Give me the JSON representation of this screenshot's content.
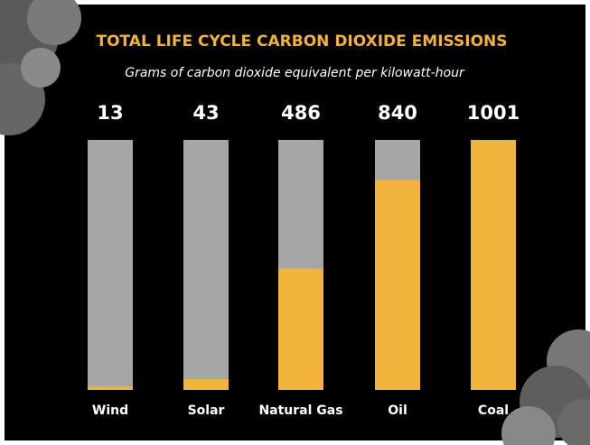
{
  "chart_data": {
    "type": "bar",
    "title": "TOTAL LIFE CYCLE CARBON DIOXIDE EMISSIONS",
    "subtitle": "Grams of carbon dioxide equivalent per kilowatt-hour",
    "categories": [
      "Wind",
      "Solar",
      "Natural Gas",
      "Oil",
      "Coal"
    ],
    "values": [
      13,
      43,
      486,
      840,
      1001
    ],
    "color": "#f0b43c",
    "track_color": "#a6a6a6",
    "ylim": [
      0,
      1001
    ]
  }
}
